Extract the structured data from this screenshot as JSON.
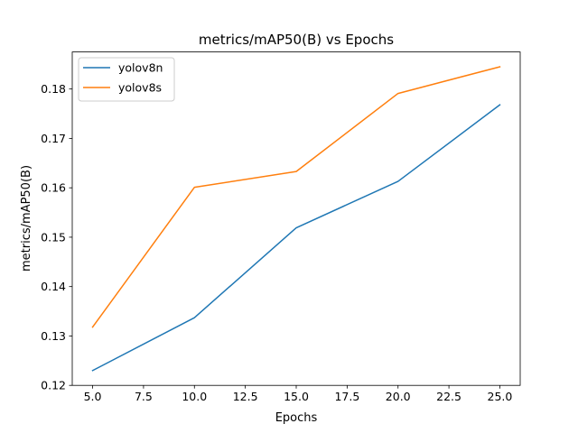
{
  "chart_data": {
    "type": "line",
    "title": "metrics/mAP50(B) vs Epochs",
    "xlabel": "Epochs",
    "ylabel": "metrics/mAP50(B)",
    "x": [
      5,
      10,
      15,
      20,
      25
    ],
    "xlim": [
      4.0,
      26.0
    ],
    "ylim": [
      0.12,
      0.1875
    ],
    "xticks": [
      "5.0",
      "7.5",
      "10.0",
      "12.5",
      "15.0",
      "17.5",
      "20.0",
      "22.5",
      "25.0"
    ],
    "yticks": [
      "0.12",
      "0.13",
      "0.14",
      "0.15",
      "0.16",
      "0.17",
      "0.18"
    ],
    "grid": false,
    "legend_position": "top-left",
    "series": [
      {
        "name": "yolov8n",
        "color": "#1f77b4",
        "values": [
          0.123,
          0.1337,
          0.1519,
          0.1613,
          0.1768
        ]
      },
      {
        "name": "yolov8s",
        "color": "#ff7f0e",
        "values": [
          0.1318,
          0.1601,
          0.1633,
          0.1791,
          0.1845
        ]
      }
    ]
  }
}
